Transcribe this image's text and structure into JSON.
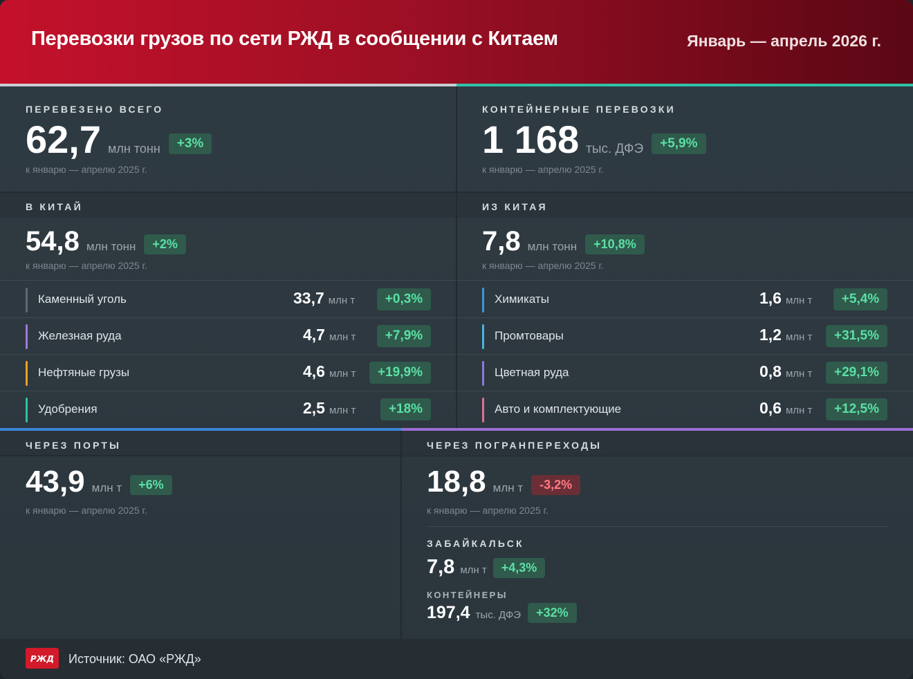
{
  "header": {
    "title": "Перевозки грузов по сети РЖД в сообщении с Китаем",
    "period": "Январь — апрель 2026 г."
  },
  "colors": {
    "accent_red": "#c4112b",
    "positive": "#5be0a4",
    "negative": "#ff7b86",
    "ports_bar": "#3a86d6",
    "border_bar": "#9b6fd6",
    "left_top_bar": "#c9cdd2",
    "right_top_bar": "#2fc2a8"
  },
  "total": {
    "label": "ПЕРЕВЕЗЕНО ВСЕГО",
    "value": "62,7",
    "unit": "млн тонн",
    "change": "+3%",
    "note": "к январю — апрелю 2025 г."
  },
  "containers": {
    "label": "КОНТЕЙНЕРНЫЕ ПЕРЕВОЗКИ",
    "value": "1 168",
    "unit": "тыс. ДФЭ",
    "change": "+5,9%",
    "note": "к январю — апрелю 2025 г."
  },
  "to_china": {
    "label": "В КИТАЙ",
    "value": "54,8",
    "unit": "млн тонн",
    "change": "+2%",
    "note": "к январю — апрелю 2025 г.",
    "items": [
      {
        "name": "Каменный уголь",
        "value": "33,7",
        "unit": "млн т",
        "change": "+0,3%",
        "color": "#5d6a72"
      },
      {
        "name": "Железная руда",
        "value": "4,7",
        "unit": "млн т",
        "change": "+7,9%",
        "color": "#a07ad8"
      },
      {
        "name": "Нефтяные грузы",
        "value": "4,6",
        "unit": "млн т",
        "change": "+19,9%",
        "color": "#f0a020"
      },
      {
        "name": "Удобрения",
        "value": "2,5",
        "unit": "млн т",
        "change": "+18%",
        "color": "#2fc2a8"
      }
    ]
  },
  "from_china": {
    "label": "ИЗ КИТАЯ",
    "value": "7,8",
    "unit": "млн тонн",
    "change": "+10,8%",
    "note": "к январю — апрелю 2025 г.",
    "items": [
      {
        "name": "Химикаты",
        "value": "1,6",
        "unit": "млн т",
        "change": "+5,4%",
        "color": "#3a96d8"
      },
      {
        "name": "Промтовары",
        "value": "1,2",
        "unit": "млн т",
        "change": "+31,5%",
        "color": "#46b6e0"
      },
      {
        "name": "Цветная руда",
        "value": "0,8",
        "unit": "млн т",
        "change": "+29,1%",
        "color": "#8a7ad8"
      },
      {
        "name": "Авто и комплектующие",
        "value": "0,6",
        "unit": "млн т",
        "change": "+12,5%",
        "color": "#e07090"
      }
    ]
  },
  "ports": {
    "label": "ЧЕРЕЗ ПОРТЫ",
    "value": "43,9",
    "unit": "млн т",
    "change": "+6%",
    "note": "к январю — апрелю 2025 г."
  },
  "border": {
    "label": "ЧЕРЕЗ ПОГРАНПЕРЕХОДЫ",
    "value": "18,8",
    "unit": "млн т",
    "change": "-3,2%",
    "note": "к январю — апрелю 2025 г.",
    "zab_label": "ЗАБАЙКАЛЬСК",
    "zab_value": "7,8",
    "zab_unit": "млн т",
    "zab_change": "+4,3%",
    "cont_label": "КОНТЕЙНЕРЫ",
    "cont_value": "197,4",
    "cont_unit": "тыс. ДФЭ",
    "cont_change": "+32%"
  },
  "footer": {
    "logo_text": "РЖД",
    "source": "Источник: ОАО «РЖД»"
  }
}
